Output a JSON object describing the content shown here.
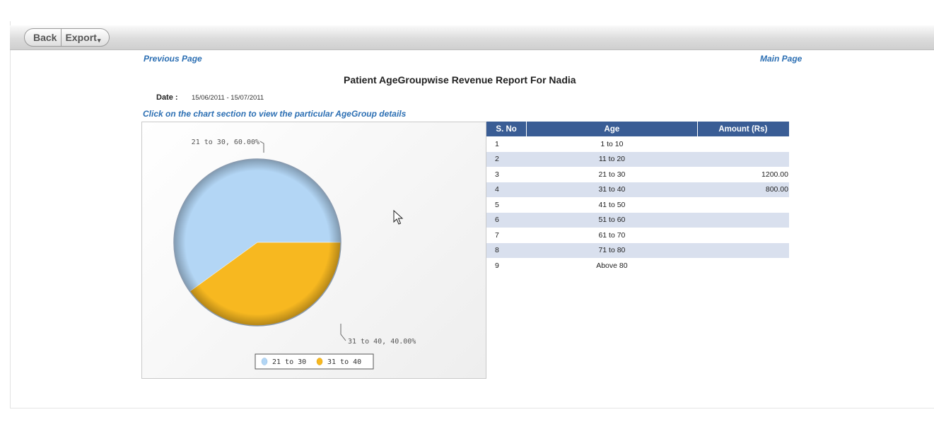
{
  "toolbar": {
    "back_label": "Back",
    "export_label": "Export"
  },
  "nav": {
    "previous_page": "Previous Page",
    "main_page": "Main Page"
  },
  "report": {
    "title": "Patient AgeGroupwise Revenue Report For Nadia",
    "date_label": "Date :",
    "date_value": "15/06/2011 - 15/07/2011",
    "instruction": "Click on the chart section  to view the particular AgeGroup details"
  },
  "table": {
    "headers": [
      "S. No",
      "Age",
      "Amount (Rs)"
    ],
    "rows": [
      {
        "sno": "1",
        "age": "1 to 10",
        "amount": ""
      },
      {
        "sno": "2",
        "age": "11 to 20",
        "amount": ""
      },
      {
        "sno": "3",
        "age": "21 to 30",
        "amount": "1200.00"
      },
      {
        "sno": "4",
        "age": "31 to 40",
        "amount": "800.00"
      },
      {
        "sno": "5",
        "age": "41 to 50",
        "amount": ""
      },
      {
        "sno": "6",
        "age": "51 to 60",
        "amount": ""
      },
      {
        "sno": "7",
        "age": "61 to 70",
        "amount": ""
      },
      {
        "sno": "8",
        "age": "71 to 80",
        "amount": ""
      },
      {
        "sno": "9",
        "age": "Above 80",
        "amount": ""
      }
    ]
  },
  "chart_data": {
    "type": "pie",
    "slices": [
      {
        "name": "21 to 30",
        "value": 1200,
        "percent": 60.0,
        "label": "21 to 30, 60.00%",
        "color": "#b3d6f5"
      },
      {
        "name": "31 to 40",
        "value": 800,
        "percent": 40.0,
        "label": "31 to 40, 40.00%",
        "color": "#f7b820"
      }
    ],
    "legend": [
      "21 to 30",
      "31 to 40"
    ],
    "legend_position": "bottom"
  },
  "colors": {
    "header_bg": "#3a5d95",
    "row_alt": "#d9e0ee",
    "link": "#2c6fb3"
  }
}
